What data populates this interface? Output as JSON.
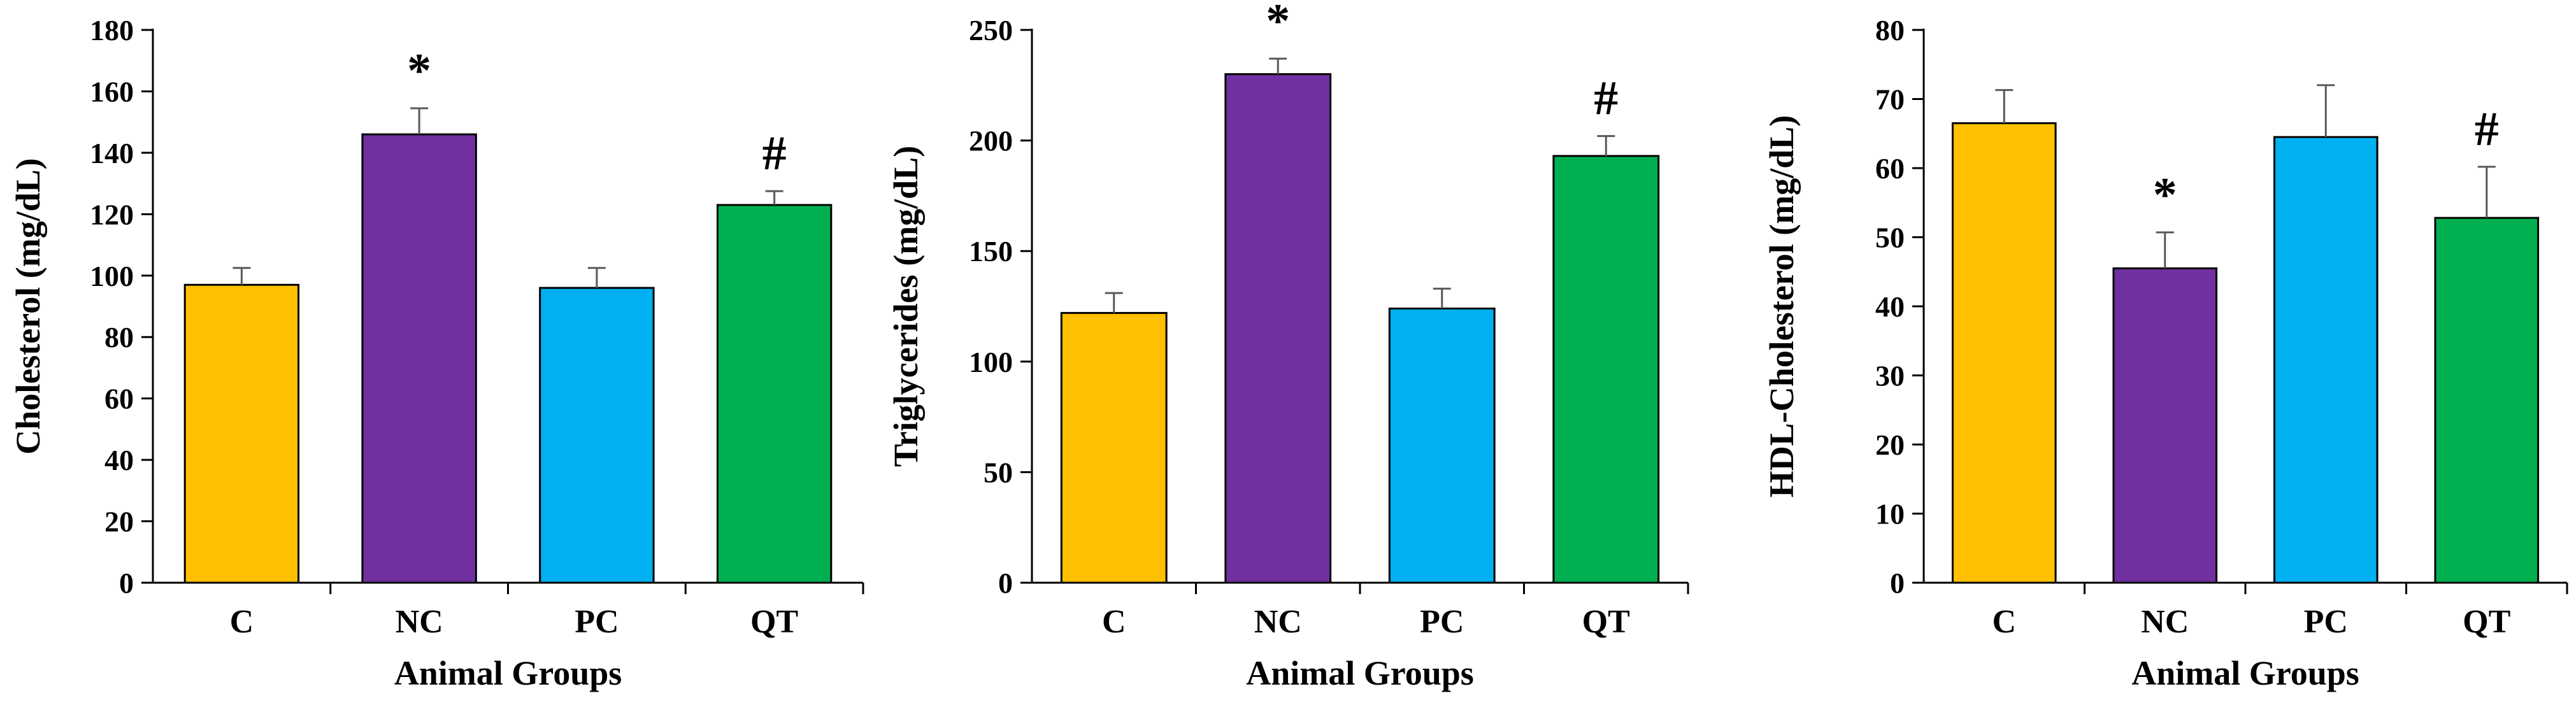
{
  "chart_data": [
    {
      "type": "bar",
      "title": "",
      "xlabel": "Animal Groups",
      "ylabel": "Cholesterol (mg/dL)",
      "ylim": [
        0,
        180
      ],
      "yticks": [
        "0",
        "20",
        "40",
        "60",
        "80",
        "100",
        "120",
        "140",
        "160",
        "180"
      ],
      "categories": [
        "C",
        "NC",
        "PC",
        "QT"
      ],
      "values": [
        97,
        146,
        96,
        123
      ],
      "errors": [
        5.5,
        8.5,
        6.5,
        4.5
      ],
      "colors": [
        "#FFC000",
        "#7030A0",
        "#00B0F0",
        "#00B050"
      ],
      "annotations": [
        "",
        "*",
        "",
        "#"
      ]
    },
    {
      "type": "bar",
      "title": "",
      "xlabel": "Animal Groups",
      "ylabel": "Triglycerides (mg/dL)",
      "ylim": [
        0,
        250
      ],
      "yticks": [
        "0",
        "50",
        "100",
        "150",
        "200",
        "250"
      ],
      "categories": [
        "C",
        "NC",
        "PC",
        "QT"
      ],
      "values": [
        122,
        230,
        124,
        193
      ],
      "errors": [
        9,
        7,
        9,
        9
      ],
      "colors": [
        "#FFC000",
        "#7030A0",
        "#00B0F0",
        "#00B050"
      ],
      "annotations": [
        "",
        "*",
        "",
        "#"
      ]
    },
    {
      "type": "bar",
      "title": "",
      "xlabel": "Animal Groups",
      "ylabel": "HDL-Cholesterol (mg/dL)",
      "ylim": [
        0,
        80
      ],
      "yticks": [
        "0",
        "10",
        "20",
        "30",
        "40",
        "50",
        "60",
        "70",
        "80"
      ],
      "categories": [
        "C",
        "NC",
        "PC",
        "QT"
      ],
      "values": [
        66.5,
        45.5,
        64.5,
        52.8
      ],
      "errors": [
        4.8,
        5.2,
        7.5,
        7.4
      ],
      "colors": [
        "#FFC000",
        "#7030A0",
        "#00B0F0",
        "#00B050"
      ],
      "annotations": [
        "",
        "*",
        "",
        "#"
      ]
    }
  ]
}
